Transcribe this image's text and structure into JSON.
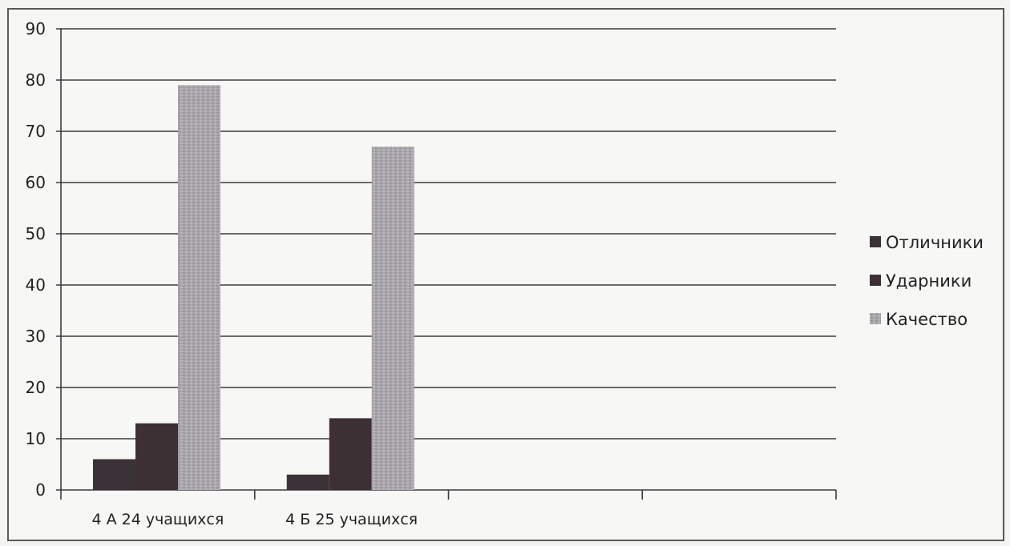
{
  "chart_data": {
    "type": "bar",
    "categories": [
      "4 А 24 учащихся",
      "4 Б 25 учащихся",
      "",
      ""
    ],
    "series": [
      {
        "name": "Отличники",
        "values": [
          6,
          3,
          null,
          null
        ],
        "color": "#3a3236"
      },
      {
        "name": "Ударники",
        "values": [
          13,
          14,
          null,
          null
        ],
        "color": "#3d3034"
      },
      {
        "name": "Качество",
        "values": [
          79,
          67,
          null,
          null
        ],
        "color": "#a9a7ab"
      }
    ],
    "ylim": [
      0,
      90
    ],
    "yticks": [
      0,
      10,
      20,
      30,
      40,
      50,
      60,
      70,
      80,
      90
    ],
    "grid": true,
    "legend_position": "right"
  }
}
